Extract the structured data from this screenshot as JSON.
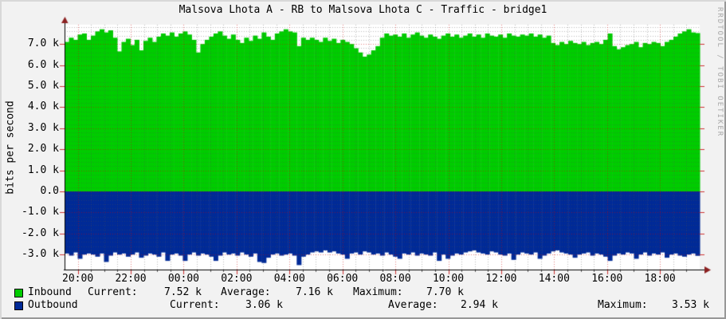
{
  "watermark": "RRDTOOL / TOBI OETIKER",
  "colors": {
    "background": "#F2F2F2",
    "plot_bg": "#FFFFFF",
    "inbound": "#00CC00",
    "outbound": "#002A97",
    "grid_minor": "rgba(80,80,80,0.38)",
    "grid_major": "rgba(210,0,0,0.5)",
    "edge_tick_major": "#CC3333",
    "edge_tick_minor": "#555555",
    "axis": "#000000",
    "arrow": "#8B2020",
    "watermark_color": "#A7A7A7"
  },
  "chart_data": {
    "type": "area",
    "title": "Malsova Lhota A - RB to Malsova Lhota C - Traffic - bridge1",
    "y_axis": {
      "label": "bits per second",
      "range": [
        -3.71,
        7.92
      ],
      "minor_step": 0.2,
      "ticks": [
        {
          "v": 7,
          "label": "7.0 k"
        },
        {
          "v": 6,
          "label": "6.0 k"
        },
        {
          "v": 5,
          "label": "5.0 k"
        },
        {
          "v": 4,
          "label": "4.0 k"
        },
        {
          "v": 3,
          "label": "3.0 k"
        },
        {
          "v": 2,
          "label": "2.0 k"
        },
        {
          "v": 1,
          "label": "1.0 k"
        },
        {
          "v": 0,
          "label": "0.0"
        },
        {
          "v": -1,
          "label": "-1.0 k"
        },
        {
          "v": -2,
          "label": "-2.0 k"
        },
        {
          "v": -3,
          "label": "-3.0 k"
        }
      ]
    },
    "x_axis": {
      "start_time": "19:30",
      "span_hours": 24,
      "minor_step_hours": 0.5,
      "ticks": [
        {
          "h": 0.5,
          "label": "20:00"
        },
        {
          "h": 2.5,
          "label": "22:00"
        },
        {
          "h": 4.5,
          "label": "00:00"
        },
        {
          "h": 6.5,
          "label": "02:00"
        },
        {
          "h": 8.5,
          "label": "04:00"
        },
        {
          "h": 10.5,
          "label": "06:00"
        },
        {
          "h": 12.5,
          "label": "08:00"
        },
        {
          "h": 14.5,
          "label": "10:00"
        },
        {
          "h": 16.5,
          "label": "12:00"
        },
        {
          "h": 18.5,
          "label": "14:00"
        },
        {
          "h": 20.5,
          "label": "16:00"
        },
        {
          "h": 22.5,
          "label": "18:00"
        }
      ]
    },
    "legend_stat_labels": {
      "current": "Current:",
      "average": "Average:",
      "maximum": "Maximum:"
    },
    "series": [
      {
        "name": "Inbound",
        "color": "#00CC00",
        "direction": "up",
        "unit": "kbits/s",
        "stats": {
          "current": "7.52 k",
          "average": "7.16 k",
          "maximum": "7.70 k"
        },
        "values": [
          7.1,
          7.3,
          7.2,
          7.45,
          7.5,
          7.2,
          7.4,
          7.6,
          7.7,
          7.55,
          7.65,
          7.3,
          6.65,
          7.1,
          7.25,
          6.95,
          7.2,
          6.7,
          7.15,
          7.3,
          7.1,
          7.35,
          7.5,
          7.4,
          7.55,
          7.35,
          7.5,
          7.6,
          7.45,
          7.2,
          6.6,
          7.0,
          7.2,
          7.35,
          7.5,
          7.6,
          7.4,
          7.25,
          7.45,
          7.2,
          7.05,
          7.3,
          7.15,
          7.4,
          7.25,
          7.55,
          7.35,
          7.2,
          7.5,
          7.6,
          7.7,
          7.6,
          7.55,
          6.9,
          7.3,
          7.2,
          7.3,
          7.2,
          7.1,
          7.3,
          7.15,
          7.25,
          7.05,
          7.2,
          7.1,
          7.0,
          6.8,
          6.6,
          6.4,
          6.5,
          6.7,
          6.9,
          7.3,
          7.5,
          7.4,
          7.45,
          7.35,
          7.5,
          7.3,
          7.45,
          7.55,
          7.4,
          7.3,
          7.45,
          7.35,
          7.25,
          7.4,
          7.5,
          7.35,
          7.45,
          7.3,
          7.4,
          7.5,
          7.35,
          7.45,
          7.3,
          7.5,
          7.4,
          7.35,
          7.45,
          7.3,
          7.5,
          7.4,
          7.35,
          7.45,
          7.4,
          7.5,
          7.35,
          7.45,
          7.3,
          7.4,
          7.05,
          6.95,
          7.1,
          7.0,
          7.15,
          7.05,
          7.0,
          7.1,
          6.95,
          7.05,
          7.1,
          7.0,
          7.2,
          7.5,
          6.9,
          6.75,
          6.85,
          6.95,
          7.0,
          7.1,
          6.85,
          7.05,
          7.0,
          7.1,
          7.05,
          6.9,
          7.1,
          7.2,
          7.35,
          7.5,
          7.6,
          7.7,
          7.55,
          7.52
        ]
      },
      {
        "name": "Outbound",
        "color": "#002A97",
        "direction": "down",
        "unit": "kbits/s",
        "stats": {
          "current": "3.06 k",
          "average": "2.94 k",
          "maximum": "3.53 k"
        },
        "values": [
          2.95,
          3.05,
          2.9,
          3.2,
          3.0,
          2.95,
          3.0,
          3.1,
          2.95,
          3.35,
          3.05,
          2.9,
          3.0,
          2.95,
          3.1,
          3.0,
          2.9,
          3.15,
          3.05,
          2.95,
          3.0,
          3.1,
          2.9,
          3.3,
          3.0,
          2.95,
          3.05,
          3.3,
          3.0,
          2.9,
          3.05,
          2.95,
          3.0,
          3.1,
          3.3,
          3.05,
          2.9,
          3.0,
          2.95,
          3.05,
          2.9,
          3.0,
          3.1,
          2.95,
          3.35,
          3.4,
          3.15,
          3.0,
          2.95,
          3.05,
          3.0,
          2.95,
          3.05,
          3.5,
          3.1,
          3.0,
          2.9,
          2.85,
          2.9,
          2.8,
          2.9,
          2.85,
          2.95,
          3.0,
          3.2,
          2.95,
          2.9,
          3.0,
          2.85,
          2.9,
          3.0,
          2.95,
          3.05,
          2.9,
          3.0,
          3.1,
          3.2,
          2.95,
          3.0,
          2.9,
          3.05,
          2.95,
          3.0,
          3.05,
          2.9,
          3.3,
          3.0,
          3.2,
          3.05,
          2.95,
          3.0,
          2.9,
          2.85,
          2.8,
          2.9,
          2.95,
          3.0,
          2.85,
          2.9,
          3.0,
          3.05,
          2.95,
          3.25,
          3.0,
          2.9,
          2.95,
          3.0,
          2.9,
          3.2,
          3.05,
          2.95,
          2.85,
          2.8,
          2.9,
          2.95,
          3.0,
          3.15,
          3.0,
          2.95,
          2.9,
          3.05,
          2.95,
          3.0,
          3.1,
          3.3,
          3.05,
          2.95,
          3.0,
          2.9,
          2.95,
          3.2,
          3.0,
          2.9,
          3.05,
          2.95,
          3.0,
          2.9,
          3.15,
          3.0,
          2.95,
          3.05,
          3.1,
          3.0,
          2.95,
          3.06
        ]
      }
    ]
  }
}
